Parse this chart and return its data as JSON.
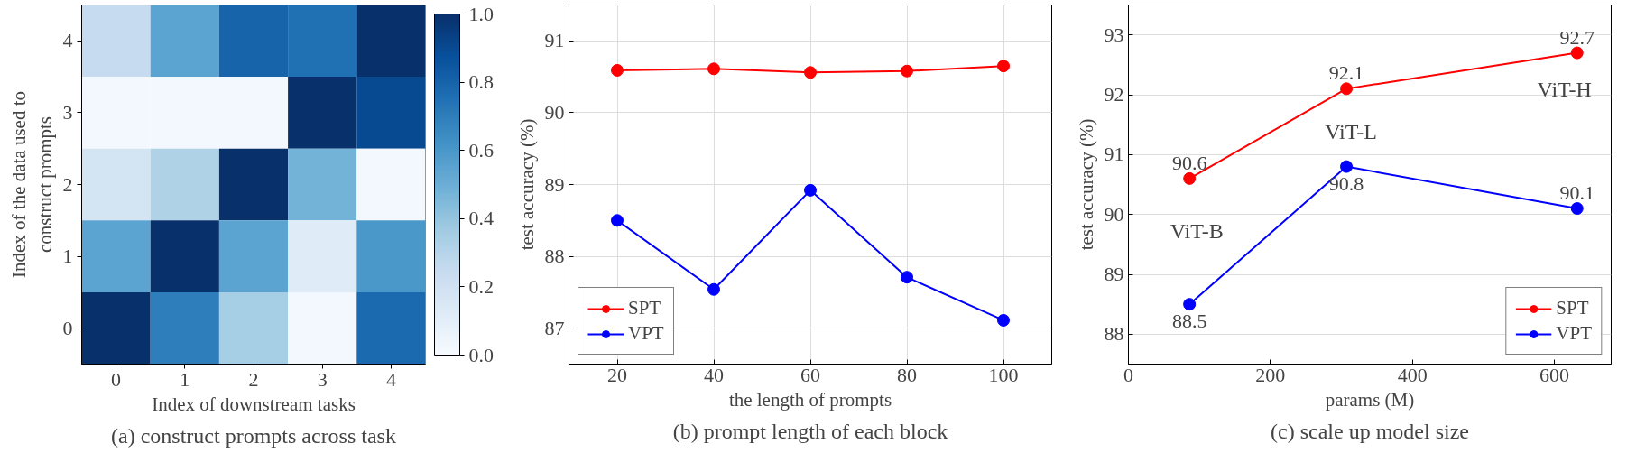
{
  "chart_data": [
    {
      "type": "heatmap",
      "xlabel": "Index of downstream tasks",
      "ylabel": "Index of the data used to\nconstruct prompts",
      "annotations": [
        "(a) construct prompts across task"
      ],
      "categories": [
        "0",
        "1",
        "2",
        "3",
        "4"
      ],
      "y_categories": [
        "4",
        "3",
        "2",
        "1",
        "0"
      ],
      "cells": [
        [
          0.25,
          0.55,
          0.8,
          0.75,
          1.0
        ],
        [
          0.02,
          0.02,
          0.02,
          1.0,
          0.9
        ],
        [
          0.18,
          0.32,
          1.0,
          0.48,
          0.02
        ],
        [
          0.55,
          1.0,
          0.55,
          0.12,
          0.6
        ],
        [
          1.0,
          0.7,
          0.35,
          0.02,
          0.78
        ]
      ],
      "clim": [
        0,
        1
      ],
      "cticks": [
        {
          "value": 0,
          "label": "0.0"
        },
        {
          "value": 0.2,
          "label": "0.2"
        },
        {
          "value": 0.4,
          "label": "0.4"
        },
        {
          "value": 0.6,
          "label": "0.6"
        },
        {
          "value": 0.8,
          "label": "0.8"
        },
        {
          "value": 1,
          "label": "1.0"
        }
      ]
    },
    {
      "type": "line",
      "xlabel": "the length of prompts",
      "ylabel": "test accuracy (%)",
      "annotations": [
        "(b) prompt length of each block"
      ],
      "x": [
        20,
        40,
        60,
        80,
        100
      ],
      "xlim": [
        10,
        110
      ],
      "xticks": [
        20,
        40,
        60,
        80,
        100
      ],
      "ylim": [
        86.5,
        91.5
      ],
      "yticks": [
        87,
        88,
        89,
        90,
        91
      ],
      "grid": true,
      "legend": "bottom left",
      "marker": "circle",
      "series": [
        {
          "name": "SPT",
          "color": "#ff0000",
          "values": [
            90.59,
            90.61,
            90.56,
            90.58,
            90.65
          ]
        },
        {
          "name": "VPT",
          "color": "#0000ff",
          "values": [
            88.5,
            87.54,
            88.92,
            87.71,
            87.11
          ]
        }
      ]
    },
    {
      "type": "line",
      "xlabel": "params (M)",
      "ylabel": "test accuracy (%)",
      "annotations": [
        "ViT-B",
        "ViT-L",
        "ViT-H",
        "(c) scale up model size"
      ],
      "x": [
        86,
        307,
        632
      ],
      "xlim": [
        0,
        680
      ],
      "xticks": [
        0,
        200,
        400,
        600
      ],
      "ylim": [
        87.5,
        93.5
      ],
      "yticks": [
        88,
        89,
        90,
        91,
        92,
        93
      ],
      "grid": "y",
      "legend": "bottom right",
      "marker": "circle",
      "data_labels": true,
      "series": [
        {
          "name": "SPT",
          "color": "#ff0000",
          "values": [
            90.6,
            92.1,
            92.7
          ]
        },
        {
          "name": "VPT",
          "color": "#0000ff",
          "values": [
            88.5,
            90.8,
            90.1
          ]
        }
      ]
    }
  ]
}
